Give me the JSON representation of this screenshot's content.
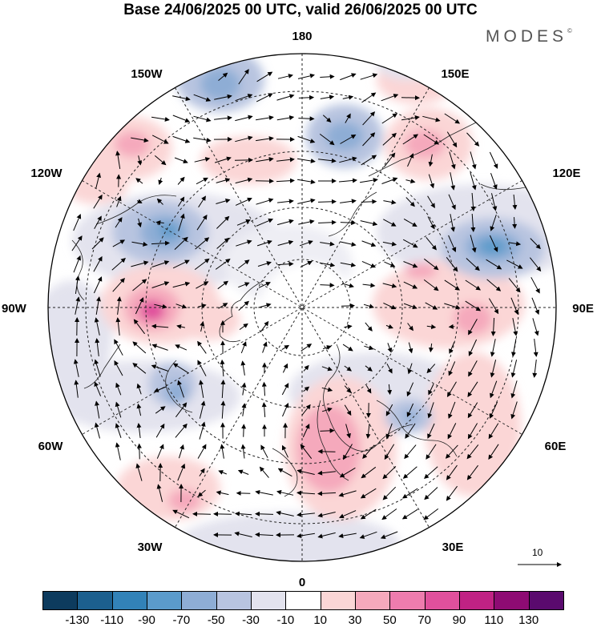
{
  "header": {
    "title": "Base 24/06/2025 00 UTC, valid 26/06/2025 00 UTC",
    "brand": "MODES",
    "brand_mark": "©"
  },
  "map": {
    "projection": "north-polar-stereographic",
    "longitude_labels": {
      "lon_0": "0",
      "lon_30e": "30E",
      "lon_60e": "60E",
      "lon_90e": "90E",
      "lon_120e": "120E",
      "lon_150e": "150E",
      "lon_180": "180",
      "lon_150w": "150W",
      "lon_120w": "120W",
      "lon_90w": "90W",
      "lon_60w": "60W",
      "lon_30w": "30W"
    },
    "reference_vector": "10",
    "anomaly_features": [
      {
        "region": "Europe / Scandinavia",
        "sign": "positive",
        "level": 50
      },
      {
        "region": "Canada / Hudson Bay",
        "sign": "positive",
        "level": 90
      },
      {
        "region": "Siberia 90E",
        "sign": "positive",
        "level": 50
      },
      {
        "region": "Eastern Siberia 150E",
        "sign": "positive",
        "level": 50
      },
      {
        "region": "Alaska 150W",
        "sign": "positive",
        "level": 50
      },
      {
        "region": "North Pacific 120W",
        "sign": "positive",
        "level": 30
      },
      {
        "region": "Western North Atlantic 30W",
        "sign": "positive",
        "level": 30
      },
      {
        "region": "Eastern Siberia 120E",
        "sign": "negative",
        "level": -70
      },
      {
        "region": "Canadian Arctic 120W",
        "sign": "negative",
        "level": -70
      },
      {
        "region": "Bering Strait 170E",
        "sign": "negative",
        "level": -50
      },
      {
        "region": "Aleutians 160W",
        "sign": "negative",
        "level": -50
      },
      {
        "region": "Labrador 60W",
        "sign": "negative",
        "level": -50
      },
      {
        "region": "Caspian 45E",
        "sign": "negative",
        "level": -50
      }
    ]
  },
  "colorbar": {
    "tick_labels": [
      "-130",
      "-110",
      "-90",
      "-70",
      "-50",
      "-30",
      "-10",
      "10",
      "30",
      "50",
      "70",
      "90",
      "110",
      "130"
    ],
    "colors": [
      "#0d3b5e",
      "#1c5f8e",
      "#3282b8",
      "#5b9bcb",
      "#8eadd5",
      "#b8c4e0",
      "#e3e3ee",
      "#ffffff",
      "#fbd6d6",
      "#f5a9bc",
      "#ee7cae",
      "#e0509c",
      "#c02284",
      "#8e0b73",
      "#5a0a6e"
    ]
  }
}
